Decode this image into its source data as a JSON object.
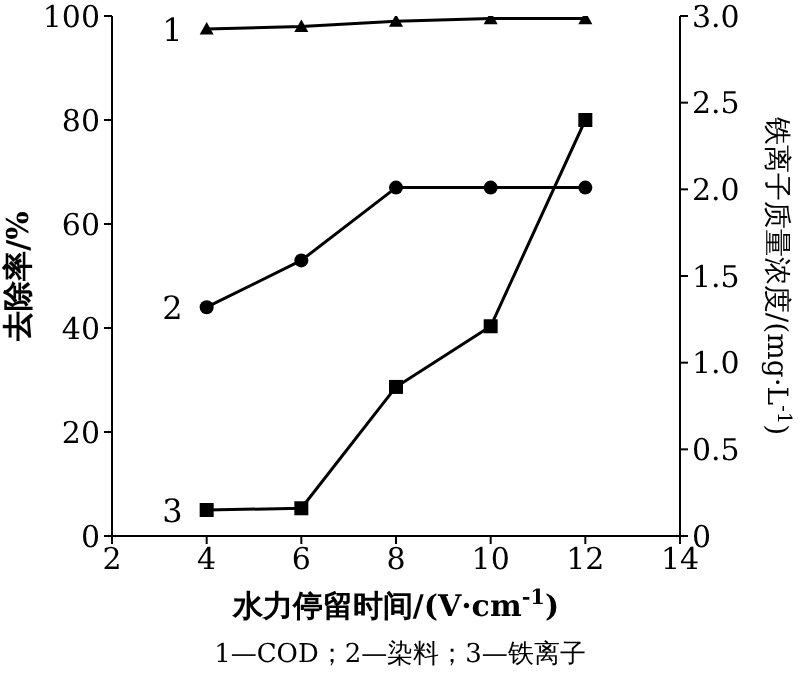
{
  "chart_data": {
    "type": "line",
    "x": [
      4,
      6,
      8,
      10,
      12
    ],
    "series": [
      {
        "name": "1",
        "color": "#000000",
        "marker": "triangle",
        "values": [
          97.5,
          98,
          99,
          99.5,
          99.5
        ]
      },
      {
        "name": "2",
        "color": "#000000",
        "marker": "circle",
        "values": [
          44,
          53,
          67,
          67,
          67
        ]
      },
      {
        "name": "3",
        "color": "#000000",
        "marker": "square",
        "axis": "y2",
        "values": [
          0.15,
          0.16,
          0.86,
          1.21,
          2.4
        ]
      }
    ],
    "xlabel": "水力停留时间/(V·cm$^{-1}$)",
    "ylabel": "去除率/%",
    "y2label": "铁离子质量浓度/(mg·L$^{-1}$)",
    "xlim": [
      2,
      14
    ],
    "xticks": [
      2,
      4,
      6,
      8,
      10,
      12,
      14
    ],
    "ylim": [
      0,
      100
    ],
    "yticks": [
      0,
      20,
      40,
      60,
      80,
      100
    ],
    "y2lim": [
      0,
      3.0
    ],
    "y2ticks": [
      {
        "value": 0,
        "label": "0"
      },
      0.5,
      {
        "value": 1,
        "label": "1.0"
      },
      1.5,
      {
        "value": 2,
        "label": "2.0"
      },
      2.5,
      {
        "value": 3,
        "label": "3.0"
      }
    ],
    "annotations": [
      "1—COD；2—染料；3—铁离子"
    ],
    "grid": false,
    "legend": false
  }
}
